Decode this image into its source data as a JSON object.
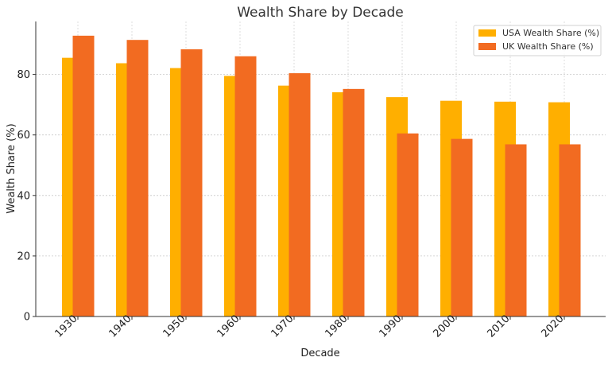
{
  "chart_data": {
    "type": "bar",
    "title": "Wealth Share by Decade",
    "xlabel": "Decade",
    "ylabel": "Wealth Share (%)",
    "categories": [
      "1930",
      "1940",
      "1950",
      "1960",
      "1970",
      "1980",
      "1990",
      "2000",
      "2010",
      "2020"
    ],
    "series": [
      {
        "name": "USA Wealth Share (%)",
        "color": "#ffaf00",
        "values": [
          85.5,
          83.7,
          82.1,
          79.5,
          76.3,
          74.1,
          72.5,
          71.3,
          71.0,
          70.8
        ]
      },
      {
        "name": "UK Wealth Share (%)",
        "color": "#f26b21",
        "values": [
          92.8,
          91.4,
          88.3,
          86.0,
          80.4,
          75.2,
          60.5,
          58.7,
          56.9,
          56.9
        ]
      }
    ],
    "ylim": [
      0,
      97.5
    ],
    "yticks": [
      0,
      20,
      40,
      60,
      80
    ],
    "grid": true,
    "legend_position": "top-right"
  }
}
